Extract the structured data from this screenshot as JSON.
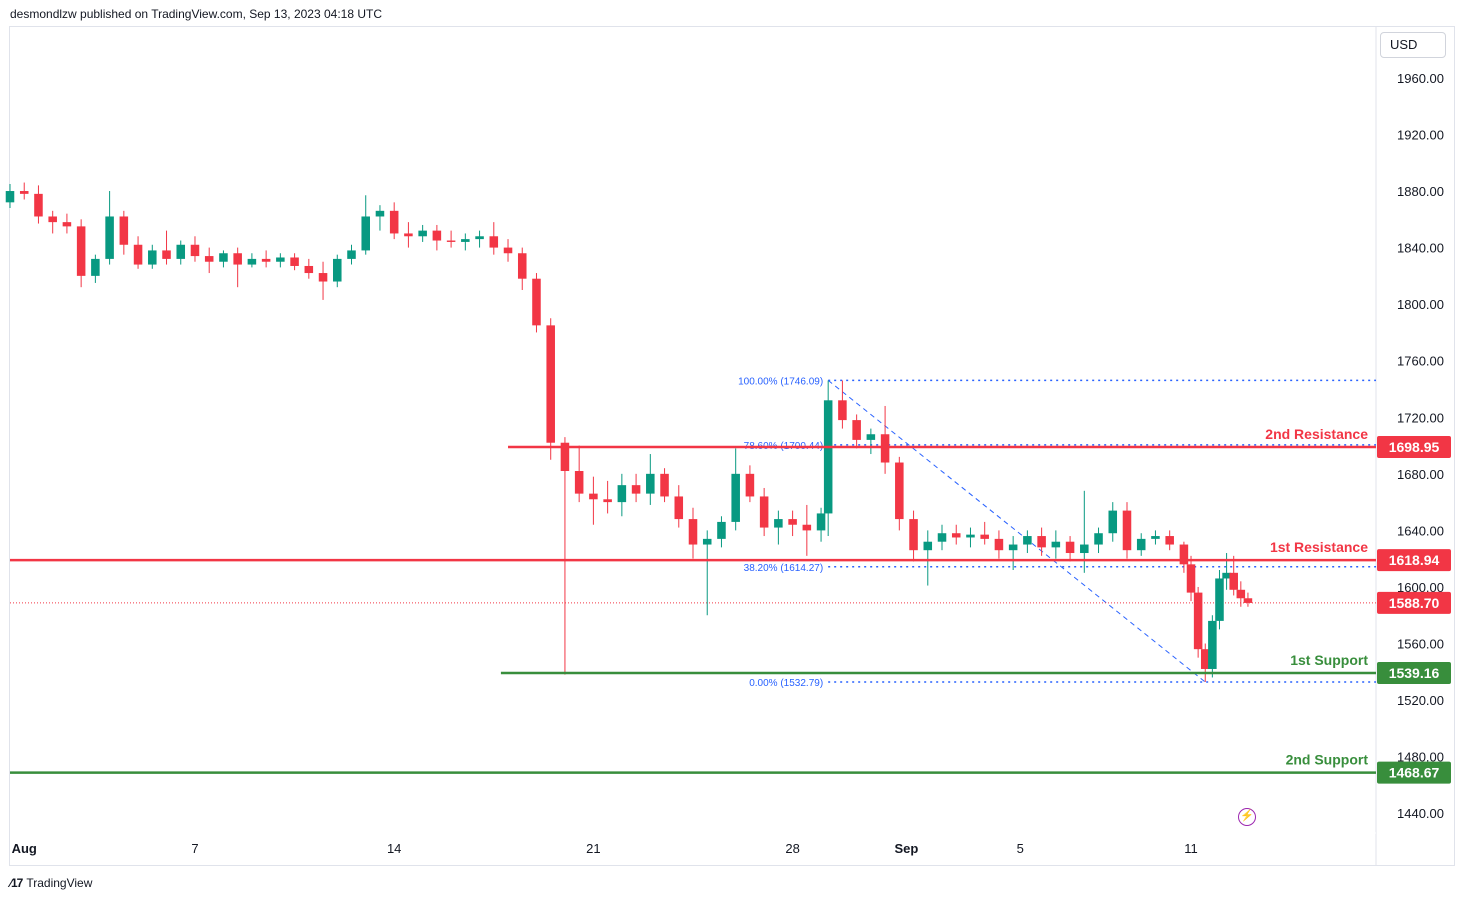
{
  "header": {
    "publisher_line": "desmondlzw published on TradingView.com, Sep 13, 2023 04:18 UTC"
  },
  "currency_label": "USD",
  "footer": {
    "brand": "TradingView",
    "logo_icon": "tradingview-logo-icon"
  },
  "alert_icon": "lightning-icon",
  "colors": {
    "up": "#089981",
    "down": "#f23645",
    "resistance": "#f23645",
    "support": "#388e3c",
    "fib": "#2962ff",
    "current_price": "#f23645",
    "axis_text": "#131722"
  },
  "chart_data": {
    "type": "candlestick",
    "symbol_currency": "USD",
    "y_ticks": [
      "1960.00",
      "1920.00",
      "1880.00",
      "1840.00",
      "1800.00",
      "1760.00",
      "1720.00",
      "1680.00",
      "1640.00",
      "1600.00",
      "1560.00",
      "1520.00",
      "1480.00",
      "1440.00"
    ],
    "y_tick_values": [
      1960,
      1920,
      1880,
      1840,
      1800,
      1760,
      1720,
      1680,
      1640,
      1600,
      1560,
      1520,
      1480,
      1440
    ],
    "ylim": [
      1426,
      1996
    ],
    "x_ticks": [
      {
        "label": "Aug",
        "date": "2023-08-01",
        "bold": true
      },
      {
        "label": "7",
        "date": "2023-08-07"
      },
      {
        "label": "14",
        "date": "2023-08-14"
      },
      {
        "label": "21",
        "date": "2023-08-21"
      },
      {
        "label": "28",
        "date": "2023-08-28"
      },
      {
        "label": "Sep",
        "date": "2023-09-01",
        "bold": true
      },
      {
        "label": "5",
        "date": "2023-09-05"
      },
      {
        "label": "11",
        "date": "2023-09-11"
      }
    ],
    "xlim": [
      "2023-07-31T12:00",
      "2023-09-17T12:00"
    ],
    "levels": [
      {
        "name": "2nd Resistance",
        "value": 1698.95,
        "label": "1698.95",
        "kind": "resistance",
        "start": "2023-08-18T00:00"
      },
      {
        "name": "1st Resistance",
        "value": 1618.94,
        "label": "1618.94",
        "kind": "resistance",
        "start": "2023-07-31T12:00"
      },
      {
        "name": "1st Support",
        "value": 1539.16,
        "label": "1539.16",
        "kind": "support",
        "start": "2023-08-17T18:00"
      },
      {
        "name": "2nd Support",
        "value": 1468.67,
        "label": "1468.67",
        "kind": "support",
        "start": "2023-07-31T12:00"
      }
    ],
    "current_price": {
      "value": 1588.7,
      "label": "1588.70"
    },
    "fibonacci": {
      "from": {
        "date": "2023-08-29T06:00",
        "price": 1746.09
      },
      "to": {
        "date": "2023-09-11T12:00",
        "price": 1532.79
      },
      "levels": [
        {
          "label": "100.00% (1746.09)",
          "value": 1746.09
        },
        {
          "label": "78.60% (1700.44)",
          "value": 1700.44
        },
        {
          "label": "38.20% (1614.27)",
          "value": 1614.27
        },
        {
          "label": "0.00% (1532.79)",
          "value": 1532.79
        }
      ]
    },
    "candles": [
      {
        "t": "2023-07-31T12:00",
        "o": 1872,
        "h": 1885,
        "l": 1868,
        "c": 1880
      },
      {
        "t": "2023-08-01T00:00",
        "o": 1880,
        "h": 1886,
        "l": 1874,
        "c": 1878
      },
      {
        "t": "2023-08-01T12:00",
        "o": 1878,
        "h": 1884,
        "l": 1857,
        "c": 1862
      },
      {
        "t": "2023-08-02T00:00",
        "o": 1862,
        "h": 1866,
        "l": 1850,
        "c": 1858
      },
      {
        "t": "2023-08-02T12:00",
        "o": 1858,
        "h": 1864,
        "l": 1850,
        "c": 1855
      },
      {
        "t": "2023-08-03T00:00",
        "o": 1855,
        "h": 1860,
        "l": 1812,
        "c": 1820
      },
      {
        "t": "2023-08-03T12:00",
        "o": 1820,
        "h": 1835,
        "l": 1815,
        "c": 1832
      },
      {
        "t": "2023-08-04T00:00",
        "o": 1832,
        "h": 1880,
        "l": 1828,
        "c": 1862
      },
      {
        "t": "2023-08-04T12:00",
        "o": 1862,
        "h": 1866,
        "l": 1835,
        "c": 1842
      },
      {
        "t": "2023-08-05T00:00",
        "o": 1842,
        "h": 1848,
        "l": 1825,
        "c": 1828
      },
      {
        "t": "2023-08-05T12:00",
        "o": 1828,
        "h": 1842,
        "l": 1825,
        "c": 1838
      },
      {
        "t": "2023-08-06T00:00",
        "o": 1838,
        "h": 1852,
        "l": 1828,
        "c": 1832
      },
      {
        "t": "2023-08-06T12:00",
        "o": 1832,
        "h": 1845,
        "l": 1828,
        "c": 1842
      },
      {
        "t": "2023-08-07T00:00",
        "o": 1842,
        "h": 1848,
        "l": 1830,
        "c": 1834
      },
      {
        "t": "2023-08-07T12:00",
        "o": 1834,
        "h": 1840,
        "l": 1822,
        "c": 1830
      },
      {
        "t": "2023-08-08T00:00",
        "o": 1830,
        "h": 1838,
        "l": 1826,
        "c": 1836
      },
      {
        "t": "2023-08-08T12:00",
        "o": 1836,
        "h": 1840,
        "l": 1812,
        "c": 1828
      },
      {
        "t": "2023-08-09T00:00",
        "o": 1828,
        "h": 1836,
        "l": 1826,
        "c": 1832
      },
      {
        "t": "2023-08-09T12:00",
        "o": 1832,
        "h": 1838,
        "l": 1826,
        "c": 1830
      },
      {
        "t": "2023-08-10T00:00",
        "o": 1830,
        "h": 1836,
        "l": 1826,
        "c": 1833
      },
      {
        "t": "2023-08-10T12:00",
        "o": 1833,
        "h": 1836,
        "l": 1824,
        "c": 1827
      },
      {
        "t": "2023-08-11T00:00",
        "o": 1827,
        "h": 1832,
        "l": 1818,
        "c": 1822
      },
      {
        "t": "2023-08-11T12:00",
        "o": 1822,
        "h": 1830,
        "l": 1803,
        "c": 1816
      },
      {
        "t": "2023-08-12T00:00",
        "o": 1816,
        "h": 1835,
        "l": 1812,
        "c": 1832
      },
      {
        "t": "2023-08-12T12:00",
        "o": 1832,
        "h": 1842,
        "l": 1828,
        "c": 1838
      },
      {
        "t": "2023-08-13T00:00",
        "o": 1838,
        "h": 1877,
        "l": 1835,
        "c": 1862
      },
      {
        "t": "2023-08-13T12:00",
        "o": 1862,
        "h": 1870,
        "l": 1852,
        "c": 1866
      },
      {
        "t": "2023-08-14T00:00",
        "o": 1866,
        "h": 1872,
        "l": 1846,
        "c": 1850
      },
      {
        "t": "2023-08-14T12:00",
        "o": 1850,
        "h": 1858,
        "l": 1840,
        "c": 1848
      },
      {
        "t": "2023-08-15T00:00",
        "o": 1848,
        "h": 1856,
        "l": 1844,
        "c": 1852
      },
      {
        "t": "2023-08-15T12:00",
        "o": 1852,
        "h": 1856,
        "l": 1838,
        "c": 1845
      },
      {
        "t": "2023-08-16T00:00",
        "o": 1845,
        "h": 1852,
        "l": 1840,
        "c": 1844
      },
      {
        "t": "2023-08-16T12:00",
        "o": 1844,
        "h": 1850,
        "l": 1838,
        "c": 1846
      },
      {
        "t": "2023-08-17T00:00",
        "o": 1846,
        "h": 1852,
        "l": 1840,
        "c": 1848
      },
      {
        "t": "2023-08-17T12:00",
        "o": 1848,
        "h": 1858,
        "l": 1835,
        "c": 1840
      },
      {
        "t": "2023-08-18T00:00",
        "o": 1840,
        "h": 1846,
        "l": 1830,
        "c": 1836
      },
      {
        "t": "2023-08-18T12:00",
        "o": 1836,
        "h": 1840,
        "l": 1810,
        "c": 1818
      },
      {
        "t": "2023-08-19T00:00",
        "o": 1818,
        "h": 1822,
        "l": 1780,
        "c": 1785
      },
      {
        "t": "2023-08-19T12:00",
        "o": 1785,
        "h": 1790,
        "l": 1690,
        "c": 1702
      },
      {
        "t": "2023-08-20T00:00",
        "o": 1702,
        "h": 1706,
        "l": 1538,
        "c": 1682
      },
      {
        "t": "2023-08-20T12:00",
        "o": 1682,
        "h": 1700,
        "l": 1660,
        "c": 1666
      },
      {
        "t": "2023-08-21T00:00",
        "o": 1666,
        "h": 1678,
        "l": 1644,
        "c": 1662
      },
      {
        "t": "2023-08-21T12:00",
        "o": 1662,
        "h": 1675,
        "l": 1652,
        "c": 1660
      },
      {
        "t": "2023-08-22T00:00",
        "o": 1660,
        "h": 1680,
        "l": 1650,
        "c": 1672
      },
      {
        "t": "2023-08-22T12:00",
        "o": 1672,
        "h": 1680,
        "l": 1660,
        "c": 1666
      },
      {
        "t": "2023-08-23T00:00",
        "o": 1666,
        "h": 1694,
        "l": 1658,
        "c": 1680
      },
      {
        "t": "2023-08-23T12:00",
        "o": 1680,
        "h": 1684,
        "l": 1660,
        "c": 1664
      },
      {
        "t": "2023-08-24T00:00",
        "o": 1664,
        "h": 1672,
        "l": 1642,
        "c": 1648
      },
      {
        "t": "2023-08-24T12:00",
        "o": 1648,
        "h": 1656,
        "l": 1620,
        "c": 1630
      },
      {
        "t": "2023-08-25T00:00",
        "o": 1630,
        "h": 1640,
        "l": 1580,
        "c": 1634
      },
      {
        "t": "2023-08-25T12:00",
        "o": 1634,
        "h": 1650,
        "l": 1628,
        "c": 1646
      },
      {
        "t": "2023-08-26T00:00",
        "o": 1646,
        "h": 1698,
        "l": 1640,
        "c": 1680
      },
      {
        "t": "2023-08-26T12:00",
        "o": 1680,
        "h": 1686,
        "l": 1660,
        "c": 1664
      },
      {
        "t": "2023-08-27T00:00",
        "o": 1664,
        "h": 1670,
        "l": 1636,
        "c": 1642
      },
      {
        "t": "2023-08-27T12:00",
        "o": 1642,
        "h": 1654,
        "l": 1630,
        "c": 1648
      },
      {
        "t": "2023-08-28T00:00",
        "o": 1648,
        "h": 1654,
        "l": 1636,
        "c": 1644
      },
      {
        "t": "2023-08-28T12:00",
        "o": 1644,
        "h": 1658,
        "l": 1622,
        "c": 1640
      },
      {
        "t": "2023-08-29T00:00",
        "o": 1640,
        "h": 1656,
        "l": 1632,
        "c": 1652
      },
      {
        "t": "2023-08-29T06:00",
        "o": 1652,
        "h": 1746,
        "l": 1636,
        "c": 1732
      },
      {
        "t": "2023-08-29T18:00",
        "o": 1732,
        "h": 1746,
        "l": 1712,
        "c": 1718
      },
      {
        "t": "2023-08-30T06:00",
        "o": 1718,
        "h": 1722,
        "l": 1698,
        "c": 1704
      },
      {
        "t": "2023-08-30T18:00",
        "o": 1704,
        "h": 1712,
        "l": 1694,
        "c": 1708
      },
      {
        "t": "2023-08-31T06:00",
        "o": 1708,
        "h": 1728,
        "l": 1680,
        "c": 1688
      },
      {
        "t": "2023-08-31T18:00",
        "o": 1688,
        "h": 1692,
        "l": 1640,
        "c": 1648
      },
      {
        "t": "2023-09-01T06:00",
        "o": 1648,
        "h": 1654,
        "l": 1618,
        "c": 1626
      },
      {
        "t": "2023-09-01T18:00",
        "o": 1626,
        "h": 1640,
        "l": 1601,
        "c": 1632
      },
      {
        "t": "2023-09-02T06:00",
        "o": 1632,
        "h": 1644,
        "l": 1626,
        "c": 1638
      },
      {
        "t": "2023-09-02T18:00",
        "o": 1638,
        "h": 1644,
        "l": 1630,
        "c": 1635
      },
      {
        "t": "2023-09-03T06:00",
        "o": 1635,
        "h": 1642,
        "l": 1628,
        "c": 1637
      },
      {
        "t": "2023-09-03T18:00",
        "o": 1637,
        "h": 1646,
        "l": 1630,
        "c": 1634
      },
      {
        "t": "2023-09-04T06:00",
        "o": 1634,
        "h": 1640,
        "l": 1620,
        "c": 1626
      },
      {
        "t": "2023-09-04T18:00",
        "o": 1626,
        "h": 1636,
        "l": 1612,
        "c": 1630
      },
      {
        "t": "2023-09-05T06:00",
        "o": 1630,
        "h": 1640,
        "l": 1624,
        "c": 1636
      },
      {
        "t": "2023-09-05T18:00",
        "o": 1636,
        "h": 1642,
        "l": 1622,
        "c": 1628
      },
      {
        "t": "2023-09-06T06:00",
        "o": 1628,
        "h": 1640,
        "l": 1620,
        "c": 1632
      },
      {
        "t": "2023-09-06T18:00",
        "o": 1632,
        "h": 1636,
        "l": 1618,
        "c": 1624
      },
      {
        "t": "2023-09-07T06:00",
        "o": 1624,
        "h": 1668,
        "l": 1610,
        "c": 1630
      },
      {
        "t": "2023-09-07T18:00",
        "o": 1630,
        "h": 1642,
        "l": 1624,
        "c": 1638
      },
      {
        "t": "2023-09-08T06:00",
        "o": 1638,
        "h": 1660,
        "l": 1632,
        "c": 1654
      },
      {
        "t": "2023-09-08T18:00",
        "o": 1654,
        "h": 1660,
        "l": 1620,
        "c": 1626
      },
      {
        "t": "2023-09-09T06:00",
        "o": 1626,
        "h": 1638,
        "l": 1622,
        "c": 1634
      },
      {
        "t": "2023-09-09T18:00",
        "o": 1634,
        "h": 1640,
        "l": 1630,
        "c": 1636
      },
      {
        "t": "2023-09-10T06:00",
        "o": 1636,
        "h": 1640,
        "l": 1626,
        "c": 1630
      },
      {
        "t": "2023-09-10T18:00",
        "o": 1630,
        "h": 1632,
        "l": 1610,
        "c": 1616
      },
      {
        "t": "2023-09-11T00:00",
        "o": 1616,
        "h": 1622,
        "l": 1590,
        "c": 1596
      },
      {
        "t": "2023-09-11T06:00",
        "o": 1596,
        "h": 1600,
        "l": 1550,
        "c": 1556
      },
      {
        "t": "2023-09-11T12:00",
        "o": 1556,
        "h": 1560,
        "l": 1532.79,
        "c": 1542
      },
      {
        "t": "2023-09-11T18:00",
        "o": 1542,
        "h": 1580,
        "l": 1536,
        "c": 1576
      },
      {
        "t": "2023-09-12T00:00",
        "o": 1576,
        "h": 1612,
        "l": 1570,
        "c": 1606
      },
      {
        "t": "2023-09-12T06:00",
        "o": 1606,
        "h": 1624,
        "l": 1598,
        "c": 1610
      },
      {
        "t": "2023-09-12T12:00",
        "o": 1610,
        "h": 1622,
        "l": 1594,
        "c": 1598
      },
      {
        "t": "2023-09-12T18:00",
        "o": 1598,
        "h": 1604,
        "l": 1586,
        "c": 1592
      },
      {
        "t": "2023-09-13T00:00",
        "o": 1592,
        "h": 1596,
        "l": 1586,
        "c": 1588.7
      }
    ]
  }
}
